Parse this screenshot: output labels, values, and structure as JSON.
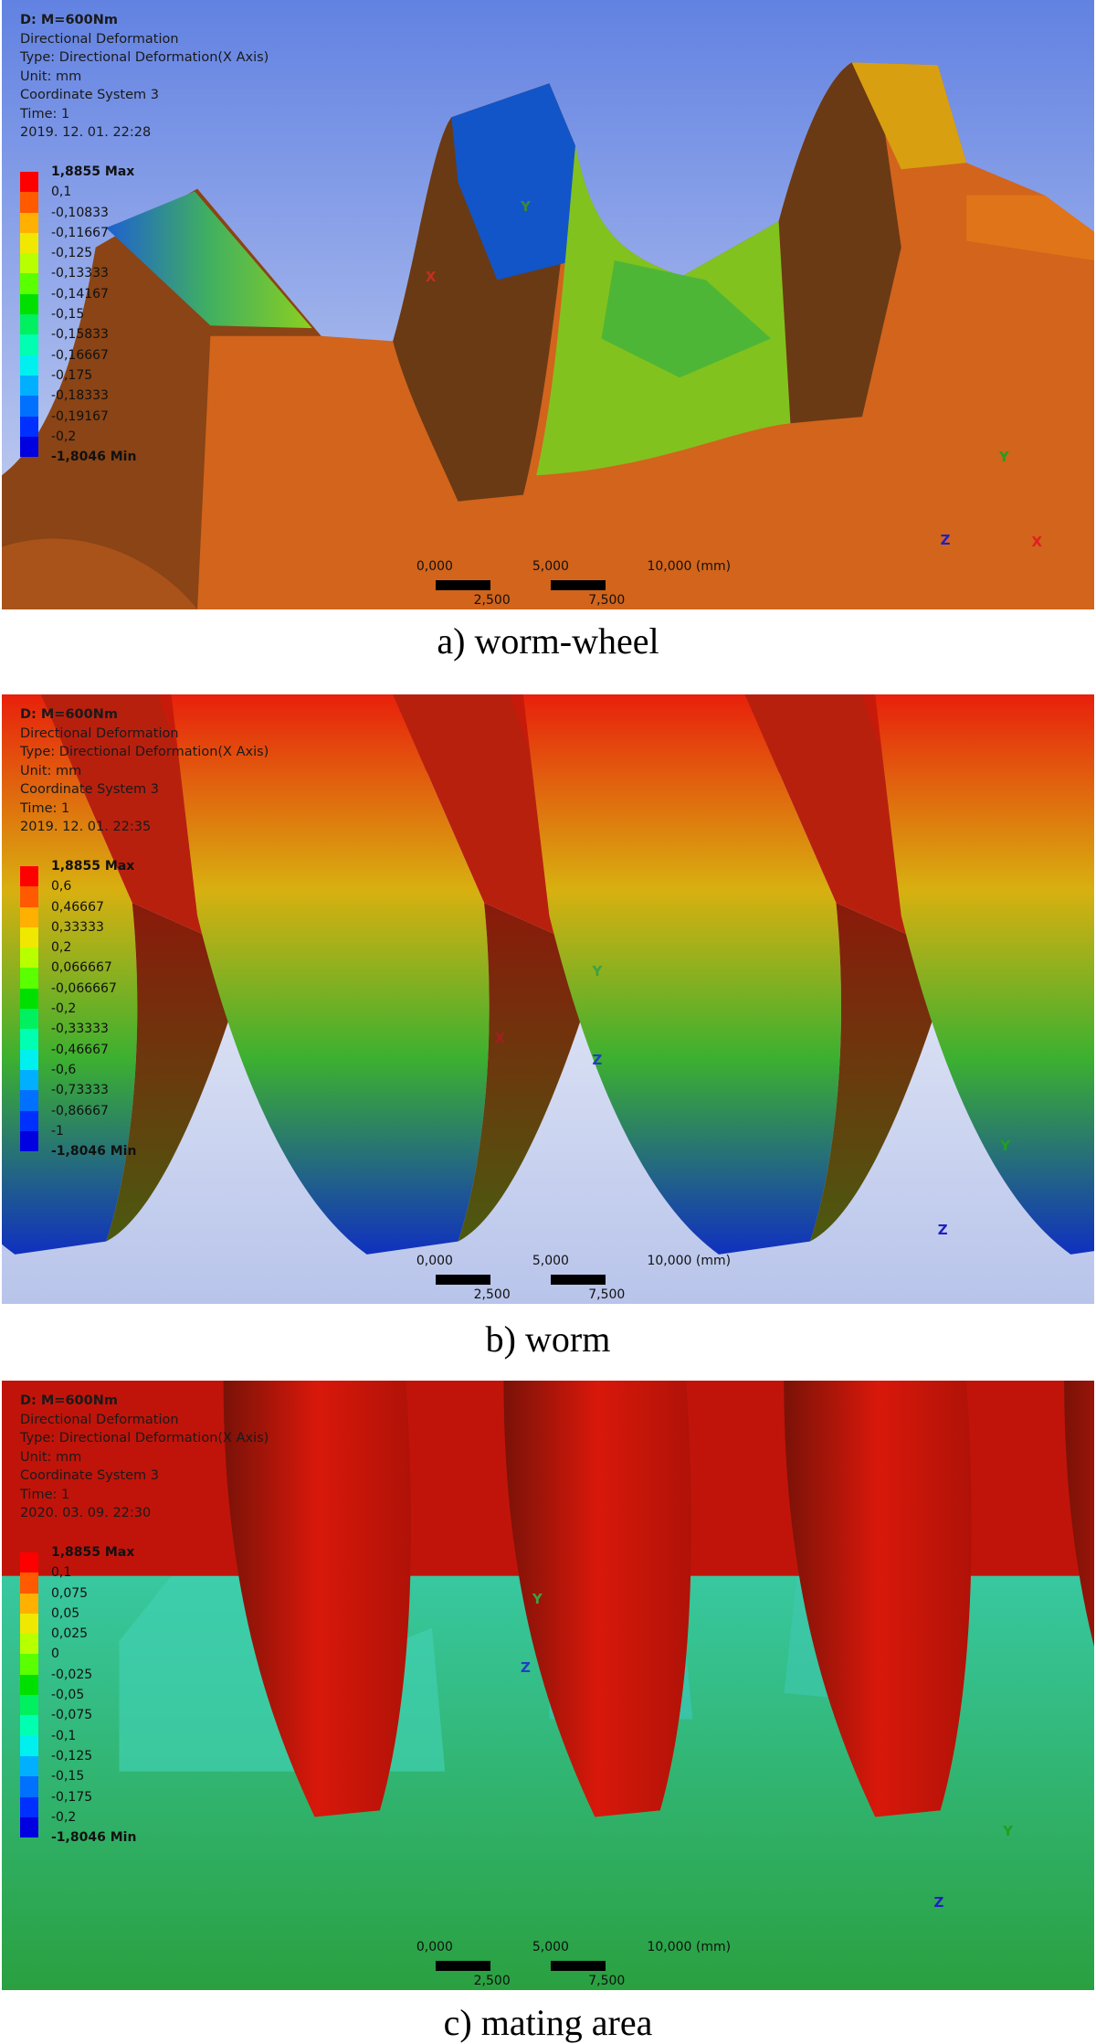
{
  "axes": {
    "x": "X",
    "y": "Y",
    "z": "Z"
  },
  "panels": [
    {
      "info": [
        "D: M=600Nm",
        "Directional Deformation",
        "Type: Directional Deformation(X Axis)",
        "Unit: mm",
        "Coordinate System 3",
        "Time: 1",
        "2019. 12. 01. 22:28"
      ],
      "legend": {
        "max": "1,8855 Max",
        "labels": [
          "0,1",
          "-0,10833",
          "-0,11667",
          "-0,125",
          "-0,13333",
          "-0,14167",
          "-0,15",
          "-0,15833",
          "-0,16667",
          "-0,175",
          "-0,18333",
          "-0,19167",
          "-0,2"
        ],
        "min": "-1,8046 Min"
      },
      "scale": [
        "0,000",
        "2,500",
        "5,000",
        "7,500",
        "10,000 (mm)"
      ],
      "caption": "a) worm-wheel"
    },
    {
      "info": [
        "D: M=600Nm",
        "Directional Deformation",
        "Type: Directional Deformation(X Axis)",
        "Unit: mm",
        "Coordinate System 3",
        "Time: 1",
        "2019. 12. 01. 22:35"
      ],
      "legend": {
        "max": "1,8855 Max",
        "labels": [
          "0,6",
          "0,46667",
          "0,33333",
          "0,2",
          "0,066667",
          "-0,066667",
          "-0,2",
          "-0,33333",
          "-0,46667",
          "-0,6",
          "-0,73333",
          "-0,86667",
          "-1"
        ],
        "min": "-1,8046 Min"
      },
      "scale": [
        "0,000",
        "2,500",
        "5,000",
        "7,500",
        "10,000 (mm)"
      ],
      "caption": "b) worm"
    },
    {
      "info": [
        "D: M=600Nm",
        "Directional Deformation",
        "Type: Directional Deformation(X Axis)",
        "Unit: mm",
        "Coordinate System 3",
        "Time: 1",
        "2020. 03. 09. 22:30"
      ],
      "legend": {
        "max": "1,8855 Max",
        "labels": [
          "0,1",
          "0,075",
          "0,05",
          "0,025",
          "0",
          "-0,025",
          "-0,05",
          "-0,075",
          "-0,1",
          "-0,125",
          "-0,15",
          "-0,175",
          "-0,2"
        ],
        "min": "-1,8046 Min"
      },
      "scale": [
        "0,000",
        "2,500",
        "5,000",
        "7,500",
        "10,000 (mm)"
      ],
      "caption": "c) mating area"
    }
  ]
}
